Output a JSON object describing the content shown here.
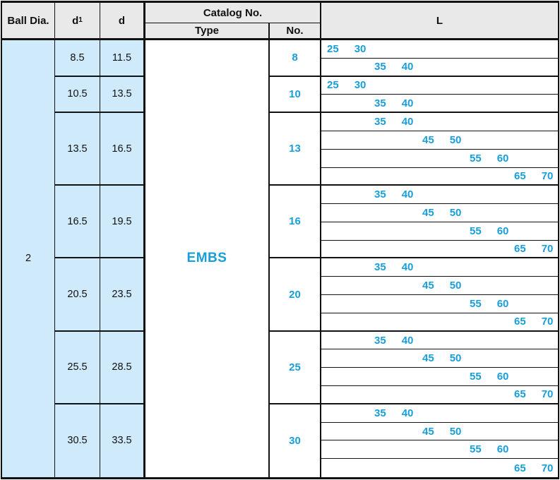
{
  "colors": {
    "accent_cyan": "#189ed9",
    "header_gray": "#e9e9e9",
    "cell_blue": "#cfeafa",
    "border_black": "#111111"
  },
  "header": {
    "ball_dia": "Ball Dia.",
    "d1_base": "d",
    "d1_sub": "1",
    "d": "d",
    "catalog": "Catalog No.",
    "type": "Type",
    "no": "No.",
    "l": "L"
  },
  "ball_dia_value": "2",
  "type_value": "EMBS",
  "blocks": [
    {
      "d1": "8.5",
      "d": "11.5",
      "no": "8",
      "l_rows": [
        {
          "v1": "25",
          "v2": "30"
        },
        {
          "v1": "35",
          "v2": "40"
        }
      ]
    },
    {
      "d1": "10.5",
      "d": "13.5",
      "no": "10",
      "l_rows": [
        {
          "v1": "25",
          "v2": "30"
        },
        {
          "v1": "35",
          "v2": "40"
        }
      ]
    },
    {
      "d1": "13.5",
      "d": "16.5",
      "no": "13",
      "l_rows": [
        {
          "v1": "35",
          "v2": "40"
        },
        {
          "v1": "45",
          "v2": "50"
        },
        {
          "v1": "55",
          "v2": "60"
        },
        {
          "v1": "65",
          "v2": "70"
        }
      ]
    },
    {
      "d1": "16.5",
      "d": "19.5",
      "no": "16",
      "l_rows": [
        {
          "v1": "35",
          "v2": "40"
        },
        {
          "v1": "45",
          "v2": "50"
        },
        {
          "v1": "55",
          "v2": "60"
        },
        {
          "v1": "65",
          "v2": "70"
        }
      ]
    },
    {
      "d1": "20.5",
      "d": "23.5",
      "no": "20",
      "l_rows": [
        {
          "v1": "35",
          "v2": "40"
        },
        {
          "v1": "45",
          "v2": "50"
        },
        {
          "v1": "55",
          "v2": "60"
        },
        {
          "v1": "65",
          "v2": "70"
        }
      ]
    },
    {
      "d1": "25.5",
      "d": "28.5",
      "no": "25",
      "l_rows": [
        {
          "v1": "35",
          "v2": "40"
        },
        {
          "v1": "45",
          "v2": "50"
        },
        {
          "v1": "55",
          "v2": "60"
        },
        {
          "v1": "65",
          "v2": "70"
        }
      ]
    },
    {
      "d1": "30.5",
      "d": "33.5",
      "no": "30",
      "l_rows": [
        {
          "v1": "35",
          "v2": "40"
        },
        {
          "v1": "45",
          "v2": "50"
        },
        {
          "v1": "55",
          "v2": "60"
        },
        {
          "v1": "65",
          "v2": "70"
        }
      ]
    }
  ]
}
